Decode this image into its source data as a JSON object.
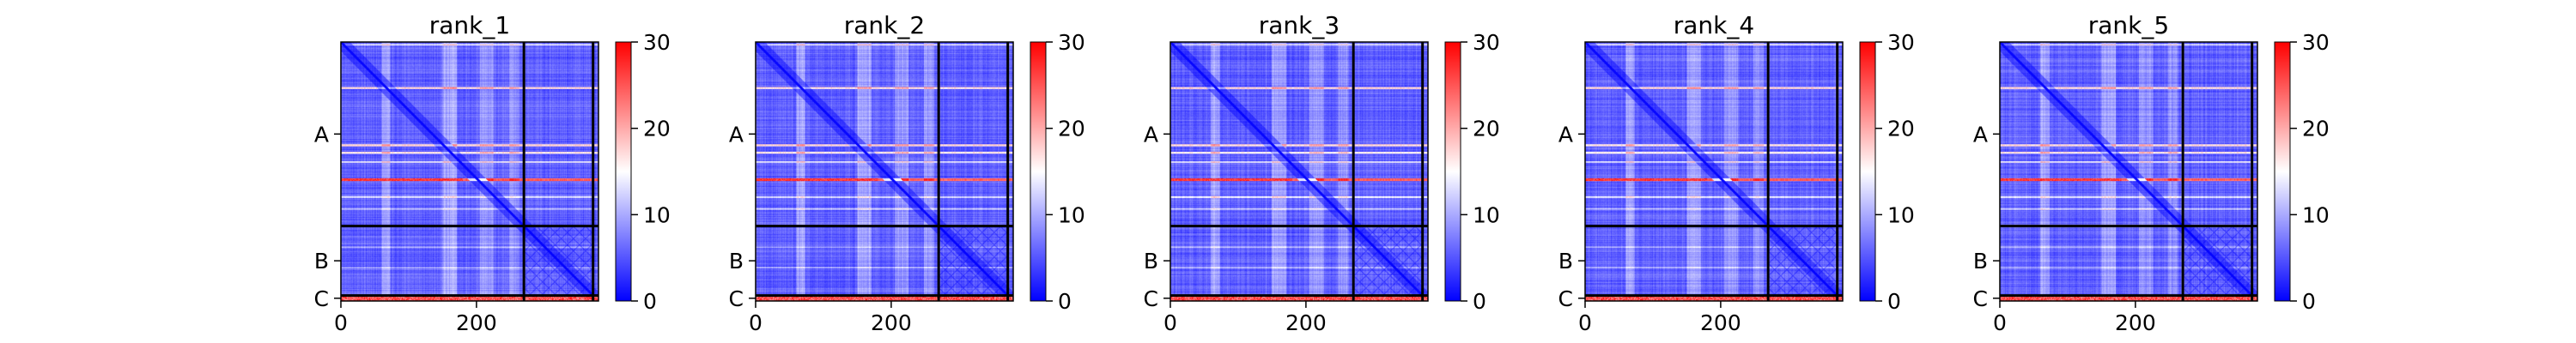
{
  "chart_data": {
    "type": "heatmap",
    "panels": [
      {
        "title": "rank_1"
      },
      {
        "title": "rank_2"
      },
      {
        "title": "rank_3"
      },
      {
        "title": "rank_4"
      },
      {
        "title": "rank_5"
      }
    ],
    "x_ticks": [
      "0",
      "200"
    ],
    "x_tick_values": [
      0,
      200
    ],
    "xlim": [
      0,
      380
    ],
    "ylim": [
      0,
      380
    ],
    "chains": [
      {
        "label": "A",
        "start": 0,
        "end": 270
      },
      {
        "label": "B",
        "start": 270,
        "end": 372
      },
      {
        "label": "C",
        "start": 372,
        "end": 380
      }
    ],
    "colorbar": {
      "ticks": [
        "0",
        "10",
        "20",
        "30"
      ],
      "tick_values": [
        0,
        10,
        20,
        30
      ],
      "range": [
        0,
        30
      ],
      "colormap": "bwr",
      "colors": [
        "#0000ff",
        "#ffffff",
        "#ff0000"
      ]
    }
  }
}
